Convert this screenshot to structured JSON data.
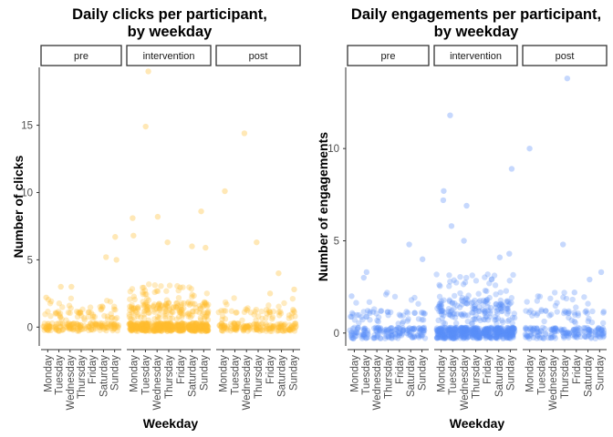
{
  "chart_data": [
    {
      "type": "scatter",
      "title": "Daily clicks per participant,\nby weekday",
      "xlabel": "Weekday",
      "ylabel": "Number of clicks",
      "ylim": [
        -1.4,
        19.3
      ],
      "yticks": [
        0,
        5,
        10,
        15
      ],
      "color": "#FFBE2E",
      "panels": [
        "pre",
        "intervention",
        "post"
      ],
      "categories": [
        "Monday",
        "Tuesday",
        "Wednesday",
        "Thursday",
        "Friday",
        "Saturday",
        "Sunday"
      ],
      "outliers": [
        {
          "panel": "pre",
          "x": "Sunday",
          "y": 6.7
        },
        {
          "panel": "pre",
          "x": "Saturday",
          "y": 5.2
        },
        {
          "panel": "pre",
          "x": "Sunday",
          "y": 5.0
        },
        {
          "panel": "pre",
          "x": "Tuesday",
          "y": 3.0
        },
        {
          "panel": "pre",
          "x": "Wednesday",
          "y": 3.0
        },
        {
          "panel": "pre",
          "x": "Monday",
          "y": 2.2
        },
        {
          "panel": "intervention",
          "x": "Tuesday",
          "y": 19.0
        },
        {
          "panel": "intervention",
          "x": "Tuesday",
          "y": 14.9
        },
        {
          "panel": "intervention",
          "x": "Monday",
          "y": 8.1
        },
        {
          "panel": "intervention",
          "x": "Wednesday",
          "y": 8.2
        },
        {
          "panel": "intervention",
          "x": "Sunday",
          "y": 8.6
        },
        {
          "panel": "intervention",
          "x": "Thursday",
          "y": 6.3
        },
        {
          "panel": "intervention",
          "x": "Saturday",
          "y": 6.0
        },
        {
          "panel": "intervention",
          "x": "Monday",
          "y": 6.8
        },
        {
          "panel": "intervention",
          "x": "Sunday",
          "y": 5.9
        },
        {
          "panel": "post",
          "x": "Wednesday",
          "y": 14.4
        },
        {
          "panel": "post",
          "x": "Monday",
          "y": 10.1
        },
        {
          "panel": "post",
          "x": "Thursday",
          "y": 6.3
        },
        {
          "panel": "post",
          "x": "Saturday",
          "y": 4.0
        },
        {
          "panel": "post",
          "x": "Sunday",
          "y": 2.8
        },
        {
          "panel": "post",
          "x": "Friday",
          "y": 2.5
        }
      ]
    },
    {
      "type": "scatter",
      "title": "Daily engagements per participant,\nby weekday",
      "xlabel": "Weekday",
      "ylabel": "Number of engagements",
      "ylim": [
        -0.7,
        14.4
      ],
      "yticks": [
        0,
        5,
        10
      ],
      "color": "#5B8FF9",
      "panels": [
        "pre",
        "intervention",
        "post"
      ],
      "categories": [
        "Monday",
        "Tuesday",
        "Wednesday",
        "Thursday",
        "Friday",
        "Saturday",
        "Sunday"
      ],
      "outliers": [
        {
          "panel": "pre",
          "x": "Sunday",
          "y": 4.0
        },
        {
          "panel": "pre",
          "x": "Saturday",
          "y": 4.8
        },
        {
          "panel": "pre",
          "x": "Tuesday",
          "y": 3.3
        },
        {
          "panel": "pre",
          "x": "Tuesday",
          "y": 3.0
        },
        {
          "panel": "pre",
          "x": "Monday",
          "y": 2.0
        },
        {
          "panel": "intervention",
          "x": "Tuesday",
          "y": 11.8
        },
        {
          "panel": "intervention",
          "x": "Sunday",
          "y": 8.9
        },
        {
          "panel": "intervention",
          "x": "Monday",
          "y": 7.7
        },
        {
          "panel": "intervention",
          "x": "Monday",
          "y": 7.2
        },
        {
          "panel": "intervention",
          "x": "Wednesday",
          "y": 6.9
        },
        {
          "panel": "intervention",
          "x": "Tuesday",
          "y": 5.8
        },
        {
          "panel": "intervention",
          "x": "Wednesday",
          "y": 5.0
        },
        {
          "panel": "intervention",
          "x": "Sunday",
          "y": 4.3
        },
        {
          "panel": "intervention",
          "x": "Saturday",
          "y": 4.1
        },
        {
          "panel": "post",
          "x": "Thursday",
          "y": 13.8
        },
        {
          "panel": "post",
          "x": "Monday",
          "y": 10.0
        },
        {
          "panel": "post",
          "x": "Thursday",
          "y": 4.8
        },
        {
          "panel": "post",
          "x": "Sunday",
          "y": 3.3
        },
        {
          "panel": "post",
          "x": "Saturday",
          "y": 2.9
        },
        {
          "panel": "post",
          "x": "Friday",
          "y": 2.2
        }
      ]
    }
  ]
}
